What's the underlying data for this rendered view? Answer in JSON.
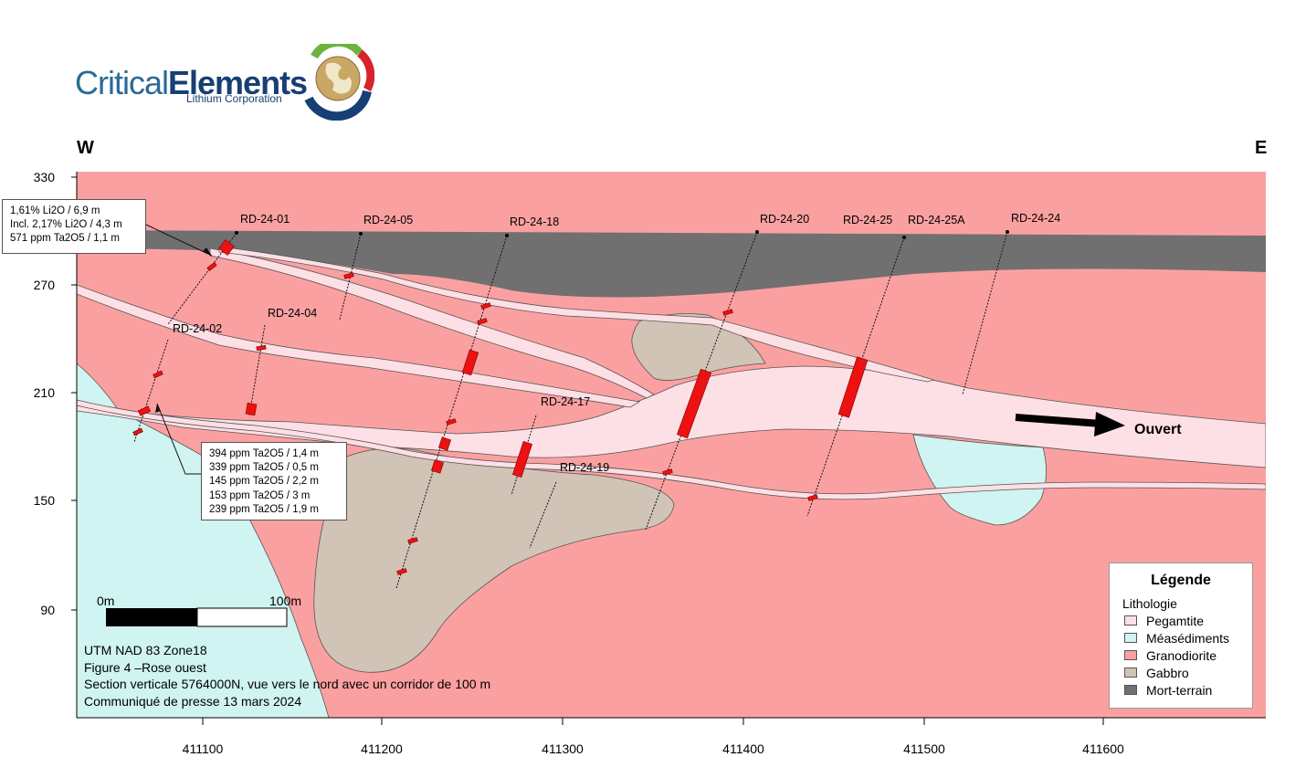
{
  "logo": {
    "name_part1": "Critical",
    "name_part2": "Elements",
    "tagline": "Lithium Corporation"
  },
  "orientation": {
    "west": "W",
    "east": "E"
  },
  "axes": {
    "y_ticks": [
      "330",
      "270",
      "210",
      "150",
      "90"
    ],
    "x_ticks": [
      "411100",
      "411200",
      "411300",
      "411400",
      "411500",
      "411600"
    ]
  },
  "drillholes": [
    "RD-24-01",
    "RD-24-05",
    "RD-24-18",
    "RD-24-20",
    "RD-24-25",
    "RD-24-25A",
    "RD-24-24",
    "RD-24-02",
    "RD-24-04",
    "RD-24-17",
    "RD-24-19"
  ],
  "callout_top": [
    "1,61% Li2O / 6,9 m",
    "Incl. 2,17% Li2O / 4,3 m",
    "571 ppm Ta2O5 / 1,1 m"
  ],
  "callout_bottom": [
    "394 ppm Ta2O5 / 1,4 m",
    "339 ppm Ta2O5 / 0,5 m",
    "145 ppm Ta2O5 / 2,2 m",
    "153 ppm Ta2O5 / 3 m",
    "239 ppm Ta2O5 / 1,9 m"
  ],
  "open_label": "Ouvert",
  "scale": {
    "start": "0m",
    "end": "100m"
  },
  "info_lines": [
    "UTM NAD 83 Zone18",
    "Figure 4 –Rose ouest",
    "Section verticale 5764000N, vue vers le nord avec un corridor de 100 m",
    "Communiqué de presse 13 mars 2024"
  ],
  "legend": {
    "title": "Légende",
    "subtitle": "Lithologie",
    "items": [
      {
        "label": "Pegamtite",
        "color": "#fde0e5"
      },
      {
        "label": "Méasédiments",
        "color": "#cff4f1"
      },
      {
        "label": "Granodiorite",
        "color": "#fba0a0"
      },
      {
        "label": "Gabbro",
        "color": "#d1c3b5"
      },
      {
        "label": "Mort-terrain",
        "color": "#707070"
      }
    ]
  },
  "colors": {
    "pegmatite": "#fde0e5",
    "metasediments": "#cff4f1",
    "granodiorite": "#fba0a0",
    "gabbro": "#d1c3b5",
    "overburden": "#707070",
    "intercept": "#ee1111"
  }
}
